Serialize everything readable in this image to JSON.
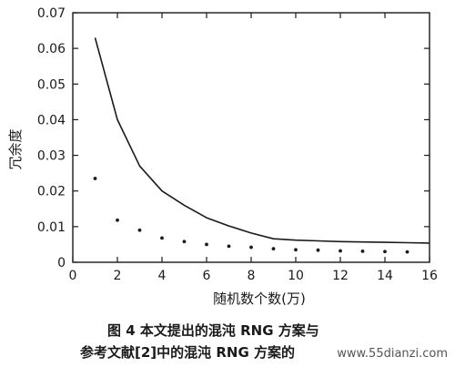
{
  "chart_data": {
    "type": "line",
    "xlabel": "随机数个数(万)",
    "ylabel": "冗余度",
    "xlim": [
      0,
      16
    ],
    "ylim": [
      0,
      0.07
    ],
    "xticks": [
      0,
      2,
      4,
      6,
      8,
      10,
      12,
      14,
      16
    ],
    "yticks": [
      0,
      0.01,
      0.02,
      0.03,
      0.04,
      0.05,
      0.06,
      0.07
    ],
    "ytick_labels": [
      "0",
      "0.01",
      "0.02",
      "0.03",
      "0.04",
      "0.05",
      "0.06",
      "0.07"
    ],
    "grid": false,
    "series": [
      {
        "style": "solid-line",
        "color": "#1a1a1a",
        "points": [
          [
            1,
            0.063
          ],
          [
            2,
            0.04
          ],
          [
            3,
            0.027
          ],
          [
            4,
            0.02
          ],
          [
            5,
            0.016
          ],
          [
            6,
            0.0125
          ],
          [
            7,
            0.0102
          ],
          [
            8,
            0.0082
          ],
          [
            9,
            0.0066
          ],
          [
            10,
            0.0062
          ],
          [
            11,
            0.006
          ],
          [
            12,
            0.0058
          ],
          [
            13,
            0.0057
          ],
          [
            14,
            0.0056
          ],
          [
            15,
            0.0055
          ],
          [
            16,
            0.0054
          ]
        ]
      },
      {
        "style": "dots",
        "color": "#1a1a1a",
        "points": [
          [
            1,
            0.0235
          ],
          [
            2,
            0.0118
          ],
          [
            3,
            0.009
          ],
          [
            4,
            0.0068
          ],
          [
            5,
            0.0058
          ],
          [
            6,
            0.005
          ],
          [
            7,
            0.0045
          ],
          [
            8,
            0.0042
          ],
          [
            9,
            0.0038
          ],
          [
            10,
            0.0035
          ],
          [
            11,
            0.0034
          ],
          [
            12,
            0.0032
          ],
          [
            13,
            0.0031
          ],
          [
            14,
            0.003
          ],
          [
            15,
            0.0029
          ]
        ]
      }
    ]
  },
  "caption": {
    "line1": "图 4  本文提出的混沌 RNG 方案与",
    "line2": "参考文献[2]中的混沌 RNG 方案的"
  },
  "watermark": "www.55dianzi.com"
}
